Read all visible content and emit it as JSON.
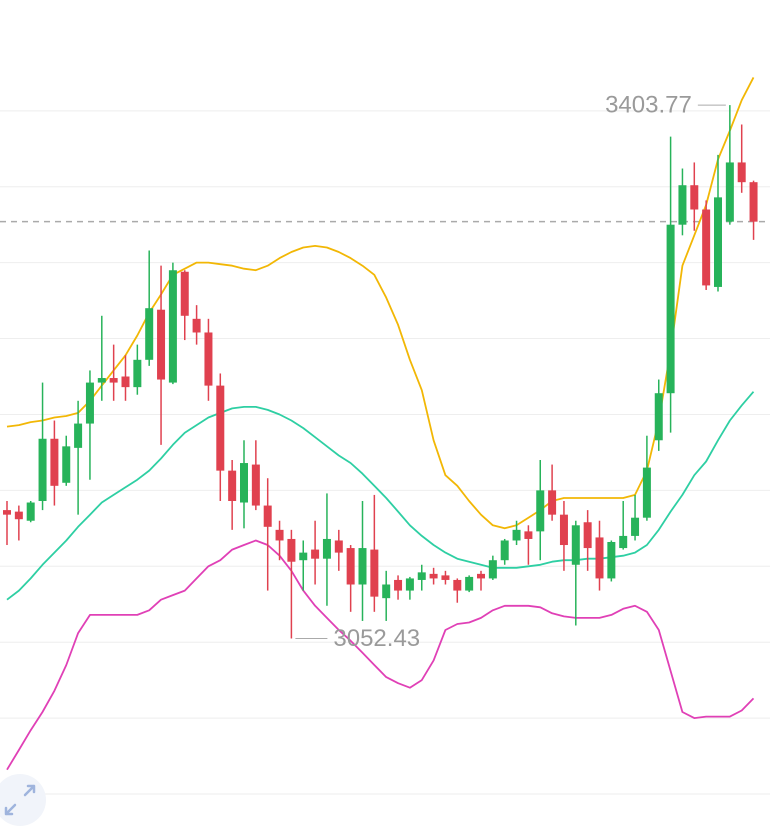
{
  "chart_data": {
    "type": "candlestick",
    "ylim": [
      2923,
      3473
    ],
    "grid": true,
    "gridlines": [
      2950,
      3000,
      3050,
      3100,
      3150,
      3200,
      3250,
      3300,
      3350,
      3400
    ],
    "up_color": "#27b35a",
    "down_color": "#e0414f",
    "open": [
      3137,
      3136,
      3130,
      3143,
      3184,
      3155,
      3178,
      3194,
      3221,
      3224,
      3225,
      3218,
      3236,
      3269,
      3221,
      3294,
      3263,
      3254,
      3219,
      3163,
      3142,
      3167,
      3140,
      3124,
      3118,
      3104,
      3111,
      3105,
      3117,
      3112,
      3088,
      3111,
      3079,
      3091,
      3084,
      3091,
      3095,
      3094,
      3091,
      3084,
      3095,
      3092,
      3104,
      3117,
      3123,
      3123,
      3150,
      3134,
      3101,
      3129,
      3119,
      3092,
      3112,
      3120,
      3132,
      3183,
      3214,
      3325,
      3351,
      3335,
      3284,
      3327,
      3366,
      3353
    ],
    "high": [
      3143,
      3140,
      3143,
      3221,
      3196,
      3186,
      3209,
      3229,
      3265,
      3246,
      3239,
      3246,
      3308,
      3298,
      3300,
      3295,
      3272,
      3263,
      3227,
      3170,
      3183,
      3183,
      3158,
      3130,
      3124,
      3117,
      3130,
      3148,
      3124,
      3114,
      3143,
      3147,
      3097,
      3094,
      3093,
      3101,
      3099,
      3097,
      3092,
      3094,
      3097,
      3107,
      3118,
      3130,
      3127,
      3170,
      3167,
      3143,
      3130,
      3137,
      3130,
      3117,
      3143,
      3147,
      3186,
      3223,
      3383,
      3362,
      3366,
      3341,
      3371,
      3403.77,
      3391,
      3354
    ],
    "low": [
      3114,
      3117,
      3129,
      3137,
      3140,
      3153,
      3134,
      3157,
      3209,
      3209,
      3209,
      3213,
      3232,
      3180,
      3220,
      3249,
      3246,
      3209,
      3143,
      3124,
      3125,
      3137,
      3084,
      3104,
      3052.43,
      3084,
      3088,
      3074,
      3097,
      3070,
      3064,
      3070,
      3064,
      3078,
      3078,
      3084,
      3088,
      3088,
      3076,
      3083,
      3084,
      3091,
      3101,
      3114,
      3101,
      3104,
      3130,
      3097,
      3061,
      3097,
      3084,
      3090,
      3111,
      3117,
      3130,
      3176,
      3188,
      3318,
      3321,
      3282,
      3281,
      3325,
      3346,
      3315
    ],
    "close": [
      3134,
      3131,
      3142,
      3184,
      3153,
      3179,
      3194,
      3221,
      3224,
      3221,
      3218,
      3236,
      3270,
      3223,
      3295,
      3265,
      3254,
      3219,
      3163,
      3143,
      3168,
      3140,
      3126,
      3117,
      3103,
      3109,
      3105,
      3118,
      3109,
      3088,
      3112,
      3080,
      3088,
      3084,
      3092,
      3096,
      3092,
      3091,
      3084,
      3093,
      3092,
      3104,
      3117,
      3124,
      3118,
      3150,
      3134,
      3114,
      3127,
      3112,
      3092,
      3116,
      3120,
      3132,
      3165,
      3214,
      3325,
      3351,
      3335,
      3285,
      3343,
      3366,
      3353,
      3327
    ],
    "lines": [
      {
        "color": "#f2b705",
        "values": [
          3192,
          3193,
          3195,
          3196,
          3198,
          3199,
          3201,
          3209,
          3219,
          3229,
          3239,
          3252,
          3267,
          3279,
          3292,
          3296,
          3300,
          3300,
          3299,
          3298,
          3296,
          3295,
          3298,
          3303,
          3307,
          3310,
          3311,
          3310,
          3307,
          3303,
          3298,
          3292,
          3277,
          3259,
          3236,
          3216,
          3183,
          3160,
          3153,
          3143,
          3134,
          3127,
          3125,
          3127,
          3132,
          3137,
          3143,
          3145,
          3145,
          3145,
          3145,
          3145,
          3145,
          3147,
          3163,
          3196,
          3242,
          3298,
          3318,
          3338,
          3368,
          3387,
          3407,
          3422
        ]
      },
      {
        "color": "#2ecfa3",
        "values": [
          3078,
          3084,
          3092,
          3101,
          3109,
          3117,
          3126,
          3134,
          3142,
          3147,
          3152,
          3157,
          3163,
          3171,
          3180,
          3188,
          3193,
          3198,
          3201,
          3204,
          3205,
          3205,
          3203,
          3200,
          3196,
          3191,
          3185,
          3179,
          3173,
          3168,
          3161,
          3153,
          3145,
          3136,
          3127,
          3120,
          3114,
          3109,
          3105,
          3103,
          3101,
          3099,
          3099,
          3099,
          3100,
          3101,
          3103,
          3104,
          3104,
          3105,
          3105,
          3106,
          3107,
          3109,
          3114,
          3124,
          3136,
          3147,
          3160,
          3169,
          3183,
          3196,
          3206,
          3215
        ]
      },
      {
        "color": "#e040b6",
        "values": [
          2966,
          2979,
          2992,
          3004,
          3018,
          3035,
          3056,
          3068,
          3068,
          3068,
          3068,
          3068,
          3071,
          3078,
          3081,
          3084,
          3092,
          3100,
          3104,
          3111,
          3114,
          3117,
          3114,
          3107,
          3097,
          3084,
          3074,
          3066,
          3058,
          3051,
          3043,
          3035,
          3027,
          3023,
          3020,
          3025,
          3038,
          3058,
          3062,
          3063,
          3066,
          3071,
          3074,
          3074,
          3074,
          3073,
          3069,
          3067,
          3066,
          3066,
          3066,
          3068,
          3072,
          3074,
          3070,
          3058,
          3031,
          3004,
          3000,
          3001,
          3001,
          3001,
          3005,
          3013
        ]
      }
    ]
  }
}
